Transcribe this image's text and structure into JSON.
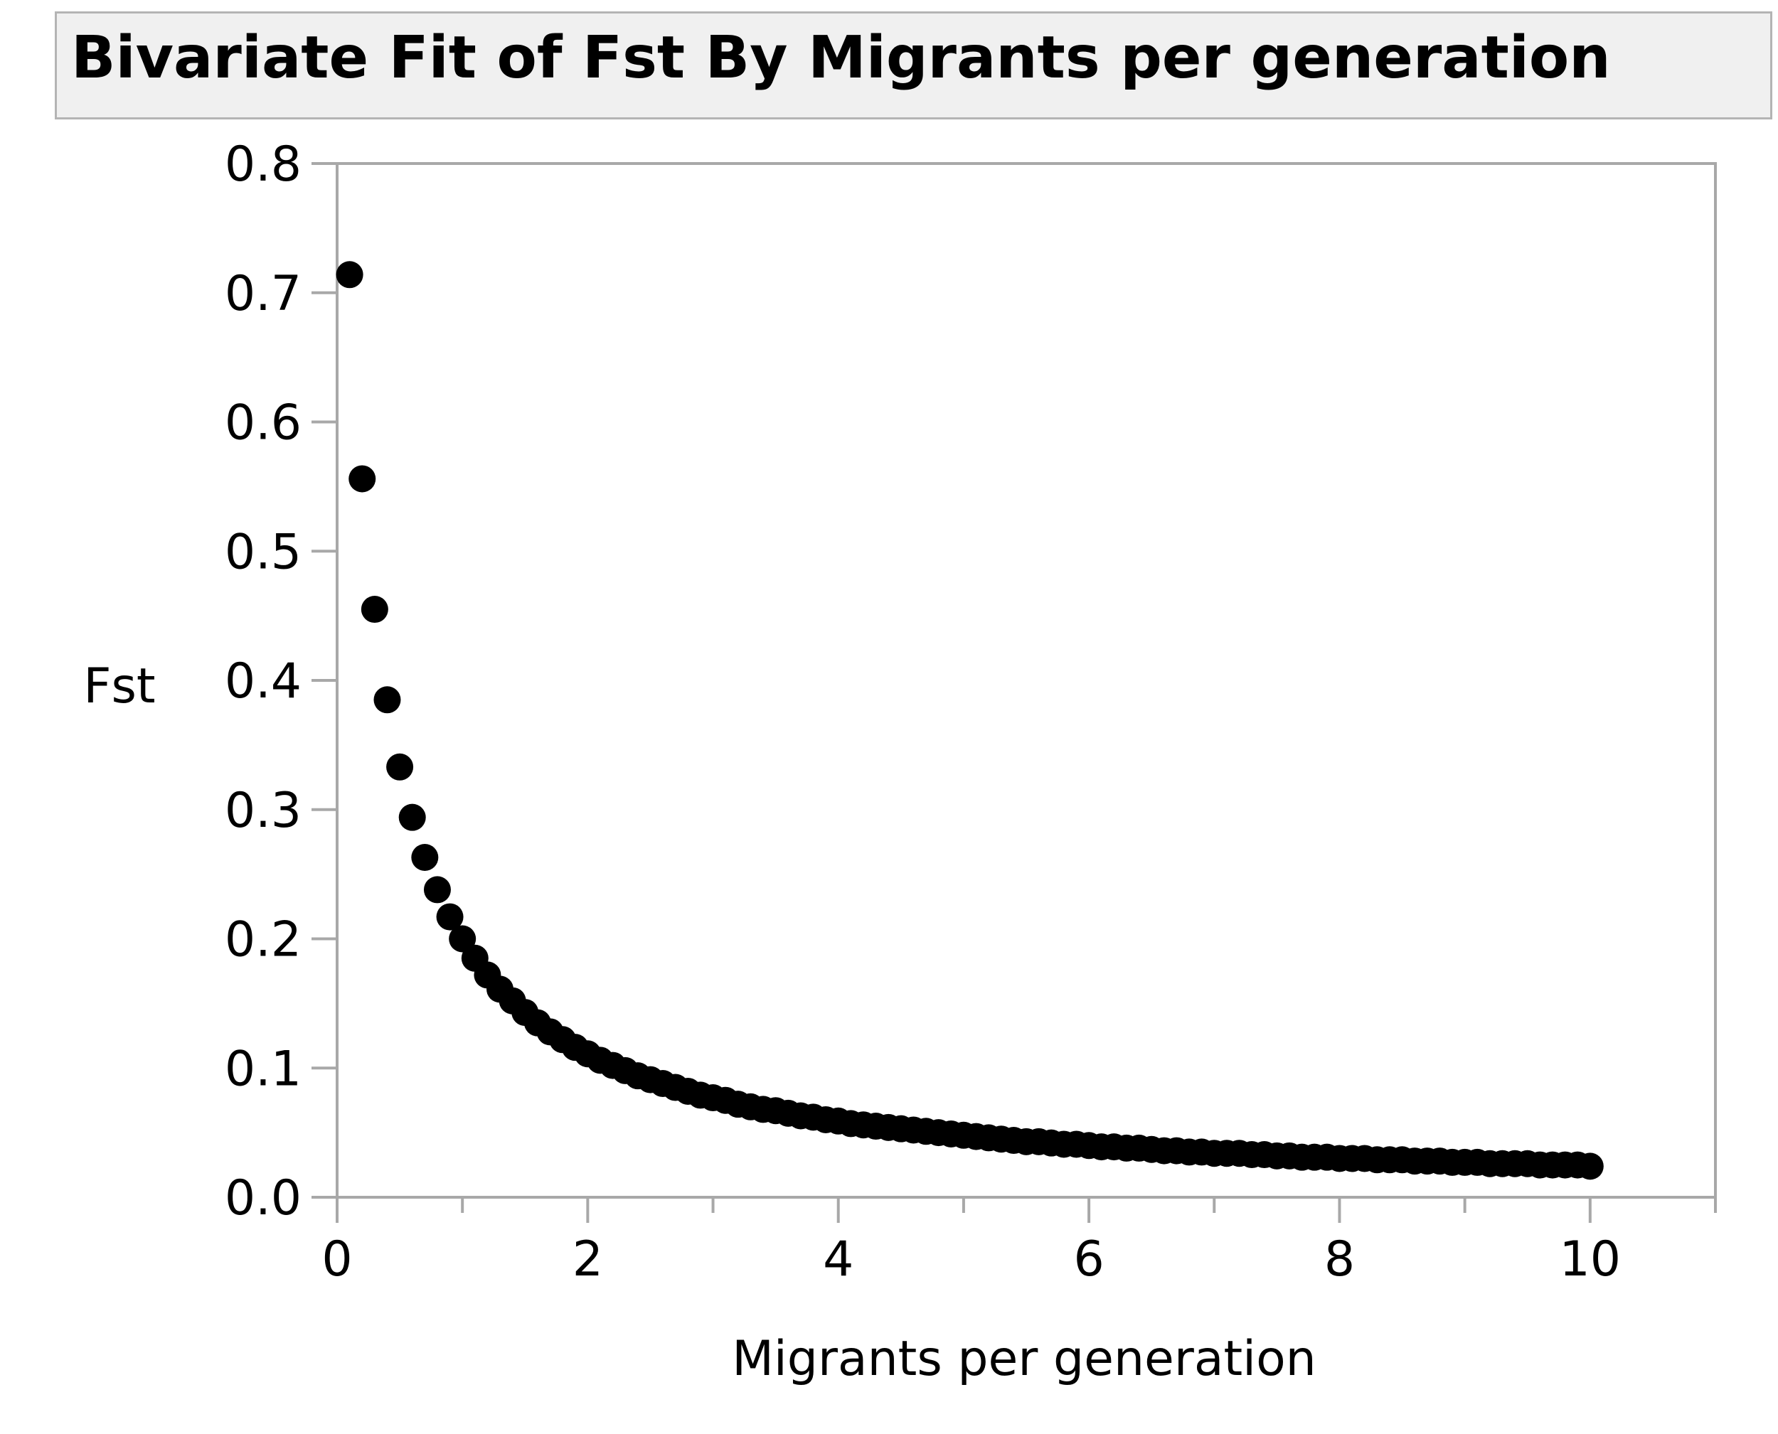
{
  "chart_data": {
    "type": "scatter",
    "title": "Bivariate Fit of Fst By Migrants per generation",
    "xlabel": "Migrants per generation",
    "ylabel": "Fst",
    "xlim": [
      0,
      11
    ],
    "ylim": [
      0,
      0.8
    ],
    "x_ticks": [
      0,
      2,
      4,
      6,
      8,
      10
    ],
    "x_tick_labels": [
      "0",
      "2",
      "4",
      "6",
      "8",
      "10"
    ],
    "y_ticks": [
      0,
      0.1,
      0.2,
      0.3,
      0.4,
      0.5,
      0.6,
      0.7,
      0.8
    ],
    "y_tick_labels": [
      "0.0",
      "0.1",
      "0.2",
      "0.3",
      "0.4",
      "0.5",
      "0.6",
      "0.7",
      "0.8"
    ],
    "grid": false,
    "marker_color": "#000000",
    "series": [
      {
        "x": [
          0.1,
          0.2,
          0.3,
          0.4,
          0.5,
          0.6,
          0.7,
          0.8,
          0.9,
          1.0,
          1.1,
          1.2,
          1.3,
          1.4,
          1.5,
          1.6,
          1.7,
          1.8,
          1.9,
          2.0,
          2.1,
          2.2,
          2.3,
          2.4,
          2.5,
          2.6,
          2.7,
          2.8,
          2.9,
          3.0,
          3.1,
          3.2,
          3.3,
          3.4,
          3.5,
          3.6,
          3.7,
          3.8,
          3.9,
          4.0,
          4.1,
          4.2,
          4.3,
          4.4,
          4.5,
          4.6,
          4.7,
          4.8,
          4.9,
          5.0,
          5.1,
          5.2,
          5.3,
          5.4,
          5.5,
          5.6,
          5.7,
          5.8,
          5.9,
          6.0,
          6.1,
          6.2,
          6.3,
          6.4,
          6.5,
          6.6,
          6.7,
          6.8,
          6.9,
          7.0,
          7.1,
          7.2,
          7.3,
          7.4,
          7.5,
          7.6,
          7.7,
          7.8,
          7.9,
          8.0,
          8.1,
          8.2,
          8.3,
          8.4,
          8.5,
          8.6,
          8.7,
          8.8,
          8.9,
          9.0,
          9.1,
          9.2,
          9.3,
          9.4,
          9.5,
          9.6,
          9.7,
          9.8,
          9.9,
          10.0
        ],
        "y": [
          0.714,
          0.556,
          0.455,
          0.385,
          0.333,
          0.294,
          0.263,
          0.238,
          0.217,
          0.2,
          0.185,
          0.172,
          0.161,
          0.152,
          0.143,
          0.135,
          0.128,
          0.122,
          0.116,
          0.111,
          0.106,
          0.102,
          0.098,
          0.094,
          0.091,
          0.088,
          0.085,
          0.082,
          0.079,
          0.077,
          0.075,
          0.072,
          0.07,
          0.068,
          0.067,
          0.065,
          0.063,
          0.062,
          0.06,
          0.059,
          0.057,
          0.056,
          0.055,
          0.054,
          0.053,
          0.052,
          0.051,
          0.05,
          0.049,
          0.048,
          0.047,
          0.046,
          0.045,
          0.044,
          0.043,
          0.043,
          0.042,
          0.041,
          0.041,
          0.04,
          0.039,
          0.039,
          0.038,
          0.038,
          0.037,
          0.036,
          0.036,
          0.035,
          0.035,
          0.034,
          0.034,
          0.034,
          0.033,
          0.033,
          0.032,
          0.032,
          0.031,
          0.031,
          0.031,
          0.03,
          0.03,
          0.03,
          0.029,
          0.029,
          0.029,
          0.028,
          0.028,
          0.028,
          0.027,
          0.027,
          0.027,
          0.026,
          0.026,
          0.026,
          0.026,
          0.025,
          0.025,
          0.025,
          0.025,
          0.024
        ]
      }
    ]
  }
}
